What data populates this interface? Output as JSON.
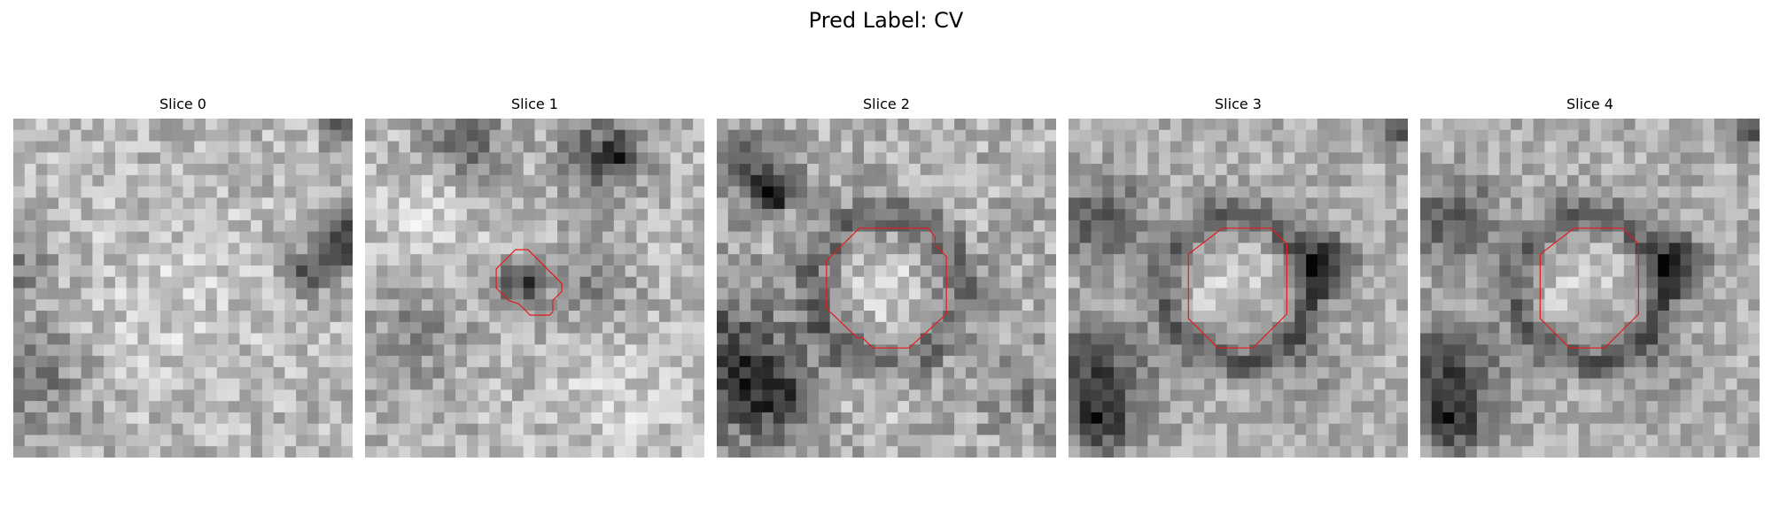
{
  "figure": {
    "title": "Pred Label: CV"
  },
  "panels": [
    {
      "title": "Slice 0",
      "has_contour": false
    },
    {
      "title": "Slice 1",
      "has_contour": true
    },
    {
      "title": "Slice 2",
      "has_contour": true
    },
    {
      "title": "Slice 3",
      "has_contour": true
    },
    {
      "title": "Slice 4",
      "has_contour": true
    }
  ],
  "colors": {
    "contour": "#e41a1c",
    "colormap": "grayscale"
  }
}
